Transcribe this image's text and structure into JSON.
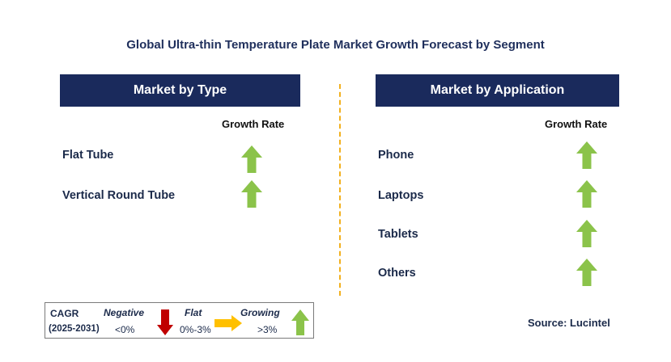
{
  "title": "Global Ultra-thin Temperature Plate Market Growth Forecast by Segment",
  "left_panel": {
    "header": "Market by Type",
    "growth_label": "Growth Rate",
    "rows": [
      {
        "label": "Flat Tube",
        "trend": "growing",
        "icon": "up-arrow-icon"
      },
      {
        "label": "Vertical Round Tube",
        "trend": "growing",
        "icon": "up-arrow-icon"
      }
    ]
  },
  "right_panel": {
    "header": "Market by Application",
    "growth_label": "Growth Rate",
    "rows": [
      {
        "label": "Phone",
        "trend": "growing",
        "icon": "up-arrow-icon"
      },
      {
        "label": "Laptops",
        "trend": "growing",
        "icon": "up-arrow-icon"
      },
      {
        "label": "Tablets",
        "trend": "growing",
        "icon": "up-arrow-icon"
      },
      {
        "label": "Others",
        "trend": "growing",
        "icon": "up-arrow-icon"
      }
    ]
  },
  "legend": {
    "cagr": "CAGR",
    "period": "(2025-2031)",
    "negative": {
      "label": "Negative",
      "range": "<0%",
      "icon": "down-arrow-icon",
      "color": "#c00000"
    },
    "flat": {
      "label": "Flat",
      "range": "0%-3%",
      "icon": "right-arrow-icon",
      "color": "#ffc000"
    },
    "growing": {
      "label": "Growing",
      "range": ">3%",
      "icon": "up-arrow-icon",
      "color": "#8bc34a"
    }
  },
  "source": "Source: Lucintel",
  "colors": {
    "header_bg": "#1a2a5c",
    "divider": "#f2b01e",
    "up_arrow": "#8bc34a",
    "down_arrow": "#c00000",
    "right_arrow": "#ffc000"
  }
}
